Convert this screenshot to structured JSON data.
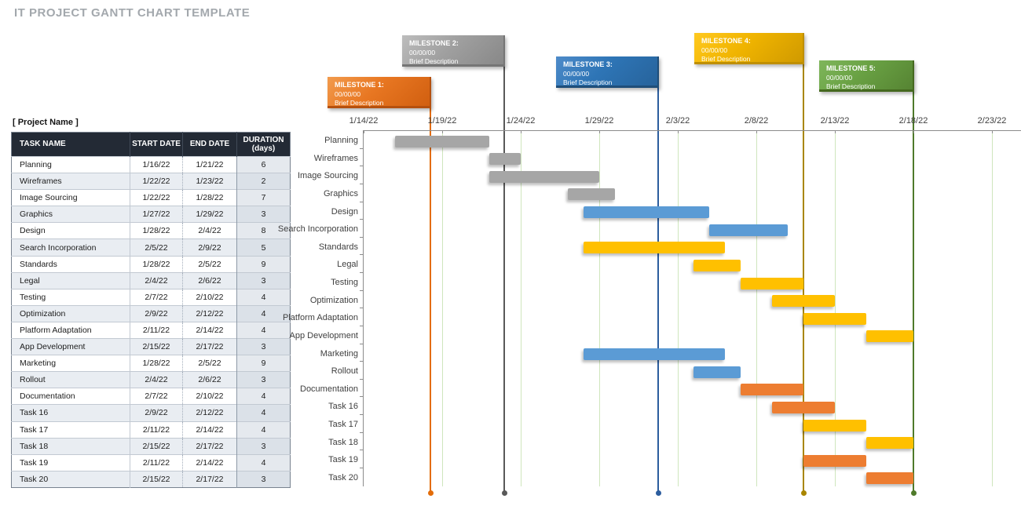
{
  "title": "IT PROJECT GANTT CHART TEMPLATE",
  "project_label": "[ Project Name ]",
  "table": {
    "headers": [
      {
        "label": "TASK NAME"
      },
      {
        "label": "START DATE"
      },
      {
        "label": "END DATE"
      },
      {
        "label": "DURATION",
        "sub": "(days)"
      }
    ]
  },
  "chart_data": {
    "type": "gantt",
    "timeline": {
      "start": "1/14/22",
      "end": "2/23/22",
      "interval_days": 5,
      "axis_tick_dates": [
        "1/14/22",
        "1/19/22",
        "1/24/22",
        "1/29/22",
        "2/3/22",
        "2/8/22",
        "2/13/22",
        "2/18/22",
        "2/23/22"
      ]
    },
    "tasks": [
      {
        "name": "Planning",
        "start": "1/16/22",
        "end": "1/21/22",
        "duration_days": 6,
        "color": "gray"
      },
      {
        "name": "Wireframes",
        "start": "1/22/22",
        "end": "1/23/22",
        "duration_days": 2,
        "color": "gray"
      },
      {
        "name": "Image Sourcing",
        "start": "1/22/22",
        "end": "1/28/22",
        "duration_days": 7,
        "color": "gray"
      },
      {
        "name": "Graphics",
        "start": "1/27/22",
        "end": "1/29/22",
        "duration_days": 3,
        "color": "gray"
      },
      {
        "name": "Design",
        "start": "1/28/22",
        "end": "2/4/22",
        "duration_days": 8,
        "color": "blue"
      },
      {
        "name": "Search Incorporation",
        "start": "2/5/22",
        "end": "2/9/22",
        "duration_days": 5,
        "color": "blue"
      },
      {
        "name": "Standards",
        "start": "1/28/22",
        "end": "2/5/22",
        "duration_days": 9,
        "color": "yellow"
      },
      {
        "name": "Legal",
        "start": "2/4/22",
        "end": "2/6/22",
        "duration_days": 3,
        "color": "yellow"
      },
      {
        "name": "Testing",
        "start": "2/7/22",
        "end": "2/10/22",
        "duration_days": 4,
        "color": "yellow"
      },
      {
        "name": "Optimization",
        "start": "2/9/22",
        "end": "2/12/22",
        "duration_days": 4,
        "color": "yellow"
      },
      {
        "name": "Platform Adaptation",
        "start": "2/11/22",
        "end": "2/14/22",
        "duration_days": 4,
        "color": "yellow"
      },
      {
        "name": "App Development",
        "start": "2/15/22",
        "end": "2/17/22",
        "duration_days": 3,
        "color": "yellow"
      },
      {
        "name": "Marketing",
        "start": "1/28/22",
        "end": "2/5/22",
        "duration_days": 9,
        "color": "blue"
      },
      {
        "name": "Rollout",
        "start": "2/4/22",
        "end": "2/6/22",
        "duration_days": 3,
        "color": "blue"
      },
      {
        "name": "Documentation",
        "start": "2/7/22",
        "end": "2/10/22",
        "duration_days": 4,
        "color": "orange"
      },
      {
        "name": "Task 16",
        "start": "2/9/22",
        "end": "2/12/22",
        "duration_days": 4,
        "color": "orange"
      },
      {
        "name": "Task 17",
        "start": "2/11/22",
        "end": "2/14/22",
        "duration_days": 4,
        "color": "yellow"
      },
      {
        "name": "Task 18",
        "start": "2/15/22",
        "end": "2/17/22",
        "duration_days": 3,
        "color": "yellow"
      },
      {
        "name": "Task 19",
        "start": "2/11/22",
        "end": "2/14/22",
        "duration_days": 4,
        "color": "orange"
      },
      {
        "name": "Task 20",
        "start": "2/15/22",
        "end": "2/17/22",
        "duration_days": 3,
        "color": "orange"
      }
    ],
    "milestones": [
      {
        "label": "MILESTONE 1:",
        "date": "00/00/00",
        "description": "Brief Description",
        "color": "orange"
      },
      {
        "label": "MILESTONE 2:",
        "date": "00/00/00",
        "description": "Brief Description",
        "color": "gray"
      },
      {
        "label": "MILESTONE 3:",
        "date": "00/00/00",
        "description": "Brief Description",
        "color": "blue"
      },
      {
        "label": "MILESTONE 4:",
        "date": "00/00/00",
        "description": "Brief Description",
        "color": "gold"
      },
      {
        "label": "MILESTONE 5:",
        "date": "00/00/00",
        "description": "Brief Description",
        "color": "green"
      }
    ]
  },
  "palette": {
    "bar_colors": {
      "gray": "#a6a6a6",
      "blue": "#5b9bd5",
      "yellow": "#ffc000",
      "orange": "#ed7d31"
    },
    "milestone_colors": {
      "orange": {
        "fill_light": "#f29b4d",
        "fill": "#e87722",
        "fill_dark": "#d15f10",
        "edge": "#b5500e",
        "line": "#e36c09"
      },
      "gray": {
        "fill_light": "#bdbdbd",
        "fill": "#a0a0a0",
        "fill_dark": "#888888",
        "edge": "#757575",
        "line": "#595959"
      },
      "blue": {
        "fill_light": "#4e8bc9",
        "fill": "#2e75b6",
        "fill_dark": "#27639b",
        "edge": "#1f4e79",
        "line": "#2c5d9e"
      },
      "gold": {
        "fill_light": "#ffc91f",
        "fill": "#f0b400",
        "fill_dark": "#d09a00",
        "edge": "#bf8f00",
        "line": "#a98600"
      },
      "green": {
        "fill_light": "#7fb65b",
        "fill": "#69a143",
        "fill_dark": "#568433",
        "edge": "#45691f",
        "line": "#4f7a2b"
      }
    },
    "grid_green": "#cfe6bd",
    "axis_gray": "#8c8c8c",
    "title_gray": "#a3a8ad",
    "table_header_bg": "#232a35"
  }
}
